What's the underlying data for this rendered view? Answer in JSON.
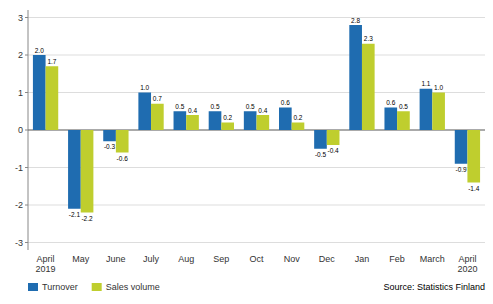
{
  "chart_data": {
    "type": "bar",
    "categories": [
      "April\n2019",
      "May",
      "June",
      "July",
      "Aug",
      "Sep",
      "Oct",
      "Nov",
      "Dec",
      "Jan",
      "Feb",
      "March",
      "April\n2020"
    ],
    "series": [
      {
        "name": "Turnover",
        "color": "#1f6cb0",
        "values": [
          2.0,
          -2.1,
          -0.3,
          1.0,
          0.5,
          0.5,
          0.5,
          0.6,
          -0.5,
          2.8,
          0.6,
          1.1,
          -0.9
        ],
        "value_labels": [
          "2.0",
          "-2.1",
          "-0.3",
          "1.0",
          "0.5",
          "0.5",
          "0.5",
          "0.6",
          "-0.5",
          "2.8",
          "0.6",
          "1.1",
          "-0.9"
        ]
      },
      {
        "name": "Sales volume",
        "color": "#bfce2e",
        "values": [
          1.7,
          -2.2,
          -0.6,
          0.7,
          0.4,
          0.2,
          0.4,
          0.2,
          -0.4,
          2.3,
          0.5,
          1.0,
          -1.4
        ],
        "value_labels": [
          "1.7",
          "-2.2",
          "-0.6",
          "0.7",
          "0.4",
          "0.2",
          "0.4",
          "0.2",
          "-0.4",
          "2.3",
          "0.5",
          "1.0",
          "-1.4"
        ]
      }
    ],
    "ylim": [
      -3.2,
      3.2
    ],
    "yticks": [
      -3,
      -2,
      -1,
      0,
      1,
      2,
      3
    ],
    "grid": true,
    "legend": "lower left",
    "data_labels": true,
    "annotations": [
      "Source: Statistics Finland"
    ]
  }
}
